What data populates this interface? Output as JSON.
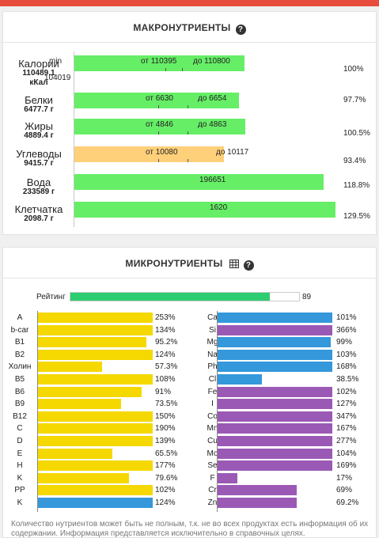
{
  "colors": {
    "top_bar": "#e74c3c",
    "green": "#66ee66",
    "orange": "#ffd07a",
    "rating": "#2ecc71",
    "yellow": "#f5d800",
    "blue": "#3498db",
    "purple": "#9b59b6"
  },
  "macro": {
    "title": "МАКРОНУТРИЕНТЫ",
    "help_icon": "question-circle-icon",
    "rows": [
      {
        "name": "Калории",
        "value": "110489.1",
        "unit": "кКал",
        "percent": "100%",
        "fill_pct": 100,
        "color": "green",
        "labels": [
          {
            "text": "min"
          },
          {
            "text": "от 110395"
          },
          {
            "text": "до 110800"
          }
        ],
        "sub_label": "104019"
      },
      {
        "name": "Белки",
        "value": "6477.7 г",
        "percent": "97.7%",
        "fill_pct": 97.7,
        "color": "green",
        "labels": [
          {
            "text": "от 6630"
          },
          {
            "text": "до 6654"
          }
        ]
      },
      {
        "name": "Жиры",
        "value": "4889.4 г",
        "percent": "100.5%",
        "fill_pct": 100.5,
        "color": "green",
        "labels": [
          {
            "text": "от 4846"
          },
          {
            "text": "до 4863"
          }
        ]
      },
      {
        "name": "Углеводы",
        "value": "9415.7 г",
        "percent": "93.4%",
        "fill_pct": 93.4,
        "color": "orange",
        "labels": [
          {
            "text": "от 10080"
          },
          {
            "text": "до 10117"
          }
        ]
      },
      {
        "name": "Вода",
        "value": "233589 г",
        "percent": "118.8%",
        "fill_pct": 118.8,
        "color": "green",
        "labels": [
          {
            "text": "196651"
          }
        ]
      },
      {
        "name": "Клетчатка",
        "value": "2098.7 г",
        "percent": "129.5%",
        "fill_pct": 129.5,
        "color": "green",
        "labels": [
          {
            "text": "1620"
          }
        ]
      }
    ]
  },
  "micro": {
    "title": "МИКРОНУТРИЕНТЫ",
    "grid_icon": "table-grid-icon",
    "help_icon": "question-circle-icon",
    "rating": {
      "label": "Рейтинг",
      "value": "89",
      "fill_pct": 89
    },
    "left": [
      {
        "name": "A",
        "pct": "253%",
        "level": 253,
        "color": "yellow"
      },
      {
        "name": "b-car",
        "pct": "134%",
        "level": 134,
        "color": "yellow"
      },
      {
        "name": "B1",
        "pct": "95.2%",
        "level": 95.2,
        "color": "yellow"
      },
      {
        "name": "B2",
        "pct": "124%",
        "level": 124,
        "color": "yellow"
      },
      {
        "name": "Холин",
        "pct": "57.3%",
        "level": 57.3,
        "color": "yellow"
      },
      {
        "name": "B5",
        "pct": "108%",
        "level": 108,
        "color": "yellow"
      },
      {
        "name": "B6",
        "pct": "91%",
        "level": 91,
        "color": "yellow"
      },
      {
        "name": "B9",
        "pct": "73.5%",
        "level": 73.5,
        "color": "yellow"
      },
      {
        "name": "B12",
        "pct": "150%",
        "level": 150,
        "color": "yellow"
      },
      {
        "name": "C",
        "pct": "190%",
        "level": 190,
        "color": "yellow"
      },
      {
        "name": "D",
        "pct": "139%",
        "level": 139,
        "color": "yellow"
      },
      {
        "name": "E",
        "pct": "65.5%",
        "level": 65.5,
        "color": "yellow"
      },
      {
        "name": "H",
        "pct": "177%",
        "level": 177,
        "color": "yellow"
      },
      {
        "name": "K",
        "pct": "79.6%",
        "level": 79.6,
        "color": "yellow"
      },
      {
        "name": "PP",
        "pct": "102%",
        "level": 102,
        "color": "yellow"
      },
      {
        "name": "K",
        "pct": "124%",
        "level": 124,
        "color": "blue"
      }
    ],
    "right": [
      {
        "name": "Ca",
        "pct": "101%",
        "level": 101,
        "color": "blue"
      },
      {
        "name": "Si",
        "pct": "366%",
        "level": 366,
        "color": "purple"
      },
      {
        "name": "Mg",
        "pct": "99%",
        "level": 99,
        "color": "blue"
      },
      {
        "name": "Na",
        "pct": "103%",
        "level": 103,
        "color": "blue"
      },
      {
        "name": "Ph",
        "pct": "168%",
        "level": 168,
        "color": "blue"
      },
      {
        "name": "Cl",
        "pct": "38.5%",
        "level": 38.5,
        "color": "blue"
      },
      {
        "name": "Fe",
        "pct": "102%",
        "level": 102,
        "color": "purple"
      },
      {
        "name": "I",
        "pct": "127%",
        "level": 127,
        "color": "purple"
      },
      {
        "name": "Co",
        "pct": "347%",
        "level": 347,
        "color": "purple"
      },
      {
        "name": "Mn",
        "pct": "167%",
        "level": 167,
        "color": "purple"
      },
      {
        "name": "Cu",
        "pct": "277%",
        "level": 277,
        "color": "purple"
      },
      {
        "name": "Mo",
        "pct": "104%",
        "level": 104,
        "color": "purple"
      },
      {
        "name": "Se",
        "pct": "169%",
        "level": 169,
        "color": "purple"
      },
      {
        "name": "F",
        "pct": "17%",
        "level": 17,
        "color": "purple"
      },
      {
        "name": "Cr",
        "pct": "69%",
        "level": 69,
        "color": "purple"
      },
      {
        "name": "Zn",
        "pct": "69.2%",
        "level": 69.2,
        "color": "purple"
      }
    ],
    "footnote": "Количество нутриентов может быть не полным, т.к. не во всех продуктах есть информация об их содержании. Информация представляется исключительно в справочных целях."
  }
}
